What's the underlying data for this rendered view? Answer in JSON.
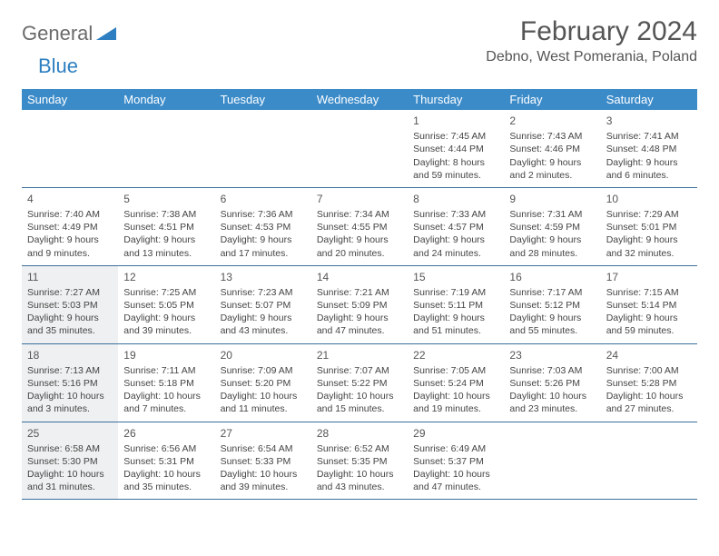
{
  "brand": {
    "part1": "General",
    "part2": "Blue"
  },
  "title": "February 2024",
  "subtitle": "Debno, West Pomerania, Poland",
  "colors": {
    "header_bg": "#3b8bc9",
    "header_text": "#ffffff",
    "rule": "#3b6f9e",
    "highlight_bg": "#eef0f1",
    "text": "#444444",
    "title_text": "#555555",
    "brand_gray": "#6b6b6b",
    "brand_blue": "#2d7fc1",
    "page_bg": "#ffffff"
  },
  "typography": {
    "title_fontsize": 30,
    "subtitle_fontsize": 16,
    "dow_fontsize": 13,
    "daynum_fontsize": 12,
    "body_fontsize": 10.5
  },
  "days_of_week": [
    "Sunday",
    "Monday",
    "Tuesday",
    "Wednesday",
    "Thursday",
    "Friday",
    "Saturday"
  ],
  "weeks": [
    [
      null,
      null,
      null,
      null,
      {
        "n": "1",
        "sr": "Sunrise: 7:45 AM",
        "ss": "Sunset: 4:44 PM",
        "d1": "Daylight: 8 hours",
        "d2": "and 59 minutes.",
        "hl": false
      },
      {
        "n": "2",
        "sr": "Sunrise: 7:43 AM",
        "ss": "Sunset: 4:46 PM",
        "d1": "Daylight: 9 hours",
        "d2": "and 2 minutes.",
        "hl": false
      },
      {
        "n": "3",
        "sr": "Sunrise: 7:41 AM",
        "ss": "Sunset: 4:48 PM",
        "d1": "Daylight: 9 hours",
        "d2": "and 6 minutes.",
        "hl": false
      }
    ],
    [
      {
        "n": "4",
        "sr": "Sunrise: 7:40 AM",
        "ss": "Sunset: 4:49 PM",
        "d1": "Daylight: 9 hours",
        "d2": "and 9 minutes.",
        "hl": false
      },
      {
        "n": "5",
        "sr": "Sunrise: 7:38 AM",
        "ss": "Sunset: 4:51 PM",
        "d1": "Daylight: 9 hours",
        "d2": "and 13 minutes.",
        "hl": false
      },
      {
        "n": "6",
        "sr": "Sunrise: 7:36 AM",
        "ss": "Sunset: 4:53 PM",
        "d1": "Daylight: 9 hours",
        "d2": "and 17 minutes.",
        "hl": false
      },
      {
        "n": "7",
        "sr": "Sunrise: 7:34 AM",
        "ss": "Sunset: 4:55 PM",
        "d1": "Daylight: 9 hours",
        "d2": "and 20 minutes.",
        "hl": false
      },
      {
        "n": "8",
        "sr": "Sunrise: 7:33 AM",
        "ss": "Sunset: 4:57 PM",
        "d1": "Daylight: 9 hours",
        "d2": "and 24 minutes.",
        "hl": false
      },
      {
        "n": "9",
        "sr": "Sunrise: 7:31 AM",
        "ss": "Sunset: 4:59 PM",
        "d1": "Daylight: 9 hours",
        "d2": "and 28 minutes.",
        "hl": false
      },
      {
        "n": "10",
        "sr": "Sunrise: 7:29 AM",
        "ss": "Sunset: 5:01 PM",
        "d1": "Daylight: 9 hours",
        "d2": "and 32 minutes.",
        "hl": false
      }
    ],
    [
      {
        "n": "11",
        "sr": "Sunrise: 7:27 AM",
        "ss": "Sunset: 5:03 PM",
        "d1": "Daylight: 9 hours",
        "d2": "and 35 minutes.",
        "hl": true
      },
      {
        "n": "12",
        "sr": "Sunrise: 7:25 AM",
        "ss": "Sunset: 5:05 PM",
        "d1": "Daylight: 9 hours",
        "d2": "and 39 minutes.",
        "hl": false
      },
      {
        "n": "13",
        "sr": "Sunrise: 7:23 AM",
        "ss": "Sunset: 5:07 PM",
        "d1": "Daylight: 9 hours",
        "d2": "and 43 minutes.",
        "hl": false
      },
      {
        "n": "14",
        "sr": "Sunrise: 7:21 AM",
        "ss": "Sunset: 5:09 PM",
        "d1": "Daylight: 9 hours",
        "d2": "and 47 minutes.",
        "hl": false
      },
      {
        "n": "15",
        "sr": "Sunrise: 7:19 AM",
        "ss": "Sunset: 5:11 PM",
        "d1": "Daylight: 9 hours",
        "d2": "and 51 minutes.",
        "hl": false
      },
      {
        "n": "16",
        "sr": "Sunrise: 7:17 AM",
        "ss": "Sunset: 5:12 PM",
        "d1": "Daylight: 9 hours",
        "d2": "and 55 minutes.",
        "hl": false
      },
      {
        "n": "17",
        "sr": "Sunrise: 7:15 AM",
        "ss": "Sunset: 5:14 PM",
        "d1": "Daylight: 9 hours",
        "d2": "and 59 minutes.",
        "hl": false
      }
    ],
    [
      {
        "n": "18",
        "sr": "Sunrise: 7:13 AM",
        "ss": "Sunset: 5:16 PM",
        "d1": "Daylight: 10 hours",
        "d2": "and 3 minutes.",
        "hl": true
      },
      {
        "n": "19",
        "sr": "Sunrise: 7:11 AM",
        "ss": "Sunset: 5:18 PM",
        "d1": "Daylight: 10 hours",
        "d2": "and 7 minutes.",
        "hl": false
      },
      {
        "n": "20",
        "sr": "Sunrise: 7:09 AM",
        "ss": "Sunset: 5:20 PM",
        "d1": "Daylight: 10 hours",
        "d2": "and 11 minutes.",
        "hl": false
      },
      {
        "n": "21",
        "sr": "Sunrise: 7:07 AM",
        "ss": "Sunset: 5:22 PM",
        "d1": "Daylight: 10 hours",
        "d2": "and 15 minutes.",
        "hl": false
      },
      {
        "n": "22",
        "sr": "Sunrise: 7:05 AM",
        "ss": "Sunset: 5:24 PM",
        "d1": "Daylight: 10 hours",
        "d2": "and 19 minutes.",
        "hl": false
      },
      {
        "n": "23",
        "sr": "Sunrise: 7:03 AM",
        "ss": "Sunset: 5:26 PM",
        "d1": "Daylight: 10 hours",
        "d2": "and 23 minutes.",
        "hl": false
      },
      {
        "n": "24",
        "sr": "Sunrise: 7:00 AM",
        "ss": "Sunset: 5:28 PM",
        "d1": "Daylight: 10 hours",
        "d2": "and 27 minutes.",
        "hl": false
      }
    ],
    [
      {
        "n": "25",
        "sr": "Sunrise: 6:58 AM",
        "ss": "Sunset: 5:30 PM",
        "d1": "Daylight: 10 hours",
        "d2": "and 31 minutes.",
        "hl": true
      },
      {
        "n": "26",
        "sr": "Sunrise: 6:56 AM",
        "ss": "Sunset: 5:31 PM",
        "d1": "Daylight: 10 hours",
        "d2": "and 35 minutes.",
        "hl": false
      },
      {
        "n": "27",
        "sr": "Sunrise: 6:54 AM",
        "ss": "Sunset: 5:33 PM",
        "d1": "Daylight: 10 hours",
        "d2": "and 39 minutes.",
        "hl": false
      },
      {
        "n": "28",
        "sr": "Sunrise: 6:52 AM",
        "ss": "Sunset: 5:35 PM",
        "d1": "Daylight: 10 hours",
        "d2": "and 43 minutes.",
        "hl": false
      },
      {
        "n": "29",
        "sr": "Sunrise: 6:49 AM",
        "ss": "Sunset: 5:37 PM",
        "d1": "Daylight: 10 hours",
        "d2": "and 47 minutes.",
        "hl": false
      },
      null,
      null
    ]
  ]
}
